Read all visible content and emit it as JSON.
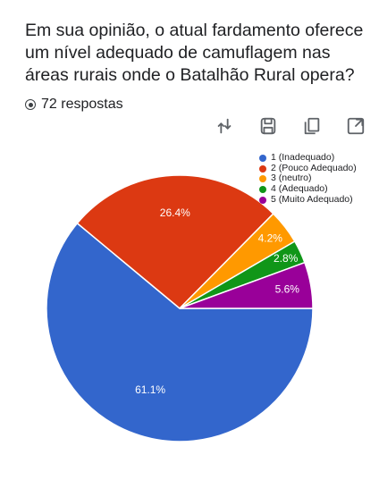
{
  "question": "Em sua opinião, o atual fardamento oferece um nível adequado de camuflagem nas áreas rurais onde o Batalhão Rural opera?",
  "responses_text": "72 respostas",
  "toolbar": {
    "icons": [
      "sort-icon",
      "save-icon",
      "copy-icon",
      "expand-icon"
    ]
  },
  "chart_data": {
    "type": "pie",
    "title": "",
    "total_responses": 72,
    "categories": [
      "1 (Inadequado)",
      "2 (Pouco Adequado)",
      "3 (neutro)",
      "4 (Adequado)",
      "5 (Muito Adequado)"
    ],
    "values": [
      61.1,
      26.4,
      4.2,
      2.8,
      5.6
    ],
    "labels": [
      "61.1%",
      "26.4%",
      "4.2%",
      "2.8%",
      "5.6%"
    ],
    "colors": [
      "#3366cc",
      "#dc3912",
      "#ff9900",
      "#109618",
      "#990099"
    ],
    "legend_position": "top-right"
  }
}
